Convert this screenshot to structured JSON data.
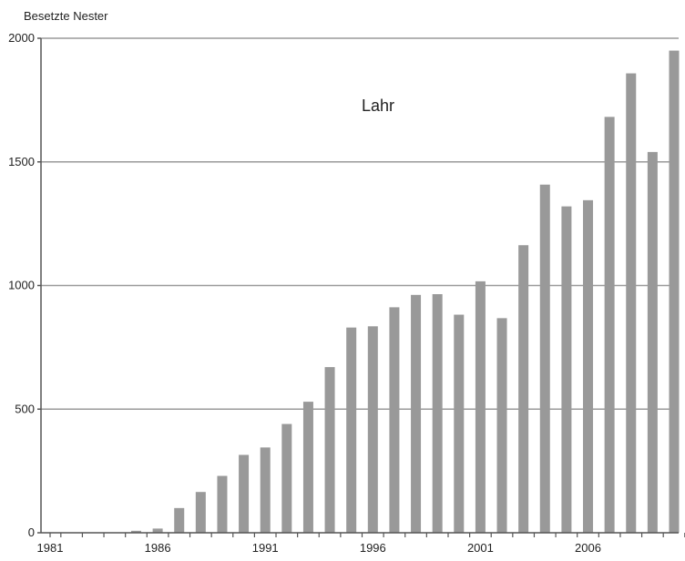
{
  "chart_data": {
    "type": "bar",
    "title": "",
    "xlabel": "",
    "ylabel": "Besetzte Nester",
    "annotation": "Lahr",
    "x": [
      1981,
      1982,
      1983,
      1984,
      1985,
      1986,
      1987,
      1988,
      1989,
      1990,
      1991,
      1992,
      1993,
      1994,
      1995,
      1996,
      1997,
      1998,
      1999,
      2000,
      2001,
      2002,
      2003,
      2004,
      2005,
      2006,
      2007,
      2008,
      2009,
      2010
    ],
    "values": [
      0,
      0,
      0,
      0,
      8,
      17,
      100,
      165,
      230,
      315,
      345,
      440,
      530,
      670,
      830,
      835,
      912,
      962,
      965,
      882,
      1017,
      868,
      1163,
      1408,
      1320,
      1345,
      1682,
      1858,
      1540,
      1950
    ],
    "x_tick_labels": [
      "1981",
      "1986",
      "1991",
      "1996",
      "2001",
      "2006"
    ],
    "y_tick_labels": [
      "0",
      "500",
      "1000",
      "1500",
      "2000"
    ],
    "ylim": [
      0,
      2000
    ],
    "grid": true,
    "bar_color": "#999999",
    "grid_color": "#9a9a9a",
    "axis_color": "#555555"
  }
}
